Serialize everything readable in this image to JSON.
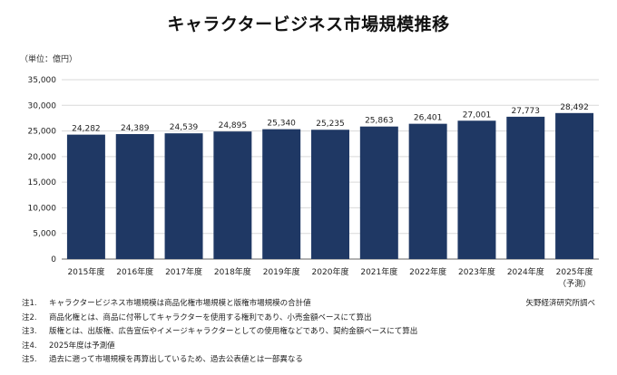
{
  "title": "キャラクタービジネス市場規模推移",
  "unit_label": "（単位：億円）",
  "source": "矢野経済研究所調べ",
  "notes": [
    {
      "num": "注1.",
      "text": "キャラクタービジネス市場規模は商品化権市場規模と版権市場規模の合計値"
    },
    {
      "num": "注2.",
      "text": "商品化権とは、商品に付帯してキャラクターを使用する権利であり、小売金額ベースにて算出"
    },
    {
      "num": "注3.",
      "text": "版権とは、出版権、広告宣伝やイメージキャラクターとしての使用権などであり、契約金額ベースにて算出"
    },
    {
      "num": "注4.",
      "text": "2025年度は予測値"
    },
    {
      "num": "注5.",
      "text": "過去に遡って市場規模を再算出しているため、過去公表値とは一部異なる"
    }
  ],
  "chart_data": {
    "type": "bar",
    "categories": [
      "2015年度",
      "2016年度",
      "2017年度",
      "2018年度",
      "2019年度",
      "2020年度",
      "2021年度",
      "2022年度",
      "2023年度",
      "2024年度",
      "2025年度"
    ],
    "category_sublabels": [
      "",
      "",
      "",
      "",
      "",
      "",
      "",
      "",
      "",
      "",
      "（予測）"
    ],
    "values": [
      24282,
      24389,
      24539,
      24895,
      25340,
      25235,
      25863,
      26401,
      27001,
      27773,
      28492
    ],
    "data_labels": [
      "24,282",
      "24,389",
      "24,539",
      "24,895",
      "25,340",
      "25,235",
      "25,863",
      "26,401",
      "27,001",
      "27,773",
      "28,492"
    ],
    "ylim": [
      0,
      35000
    ],
    "yticks": [
      0,
      5000,
      10000,
      15000,
      20000,
      25000,
      30000,
      35000
    ],
    "ytick_labels": [
      "0",
      "5,000",
      "10,000",
      "15,000",
      "20,000",
      "25,000",
      "30,000",
      "35,000"
    ],
    "grid": true,
    "bar_color": "#1f3864",
    "grid_color": "#d9d9d9"
  }
}
